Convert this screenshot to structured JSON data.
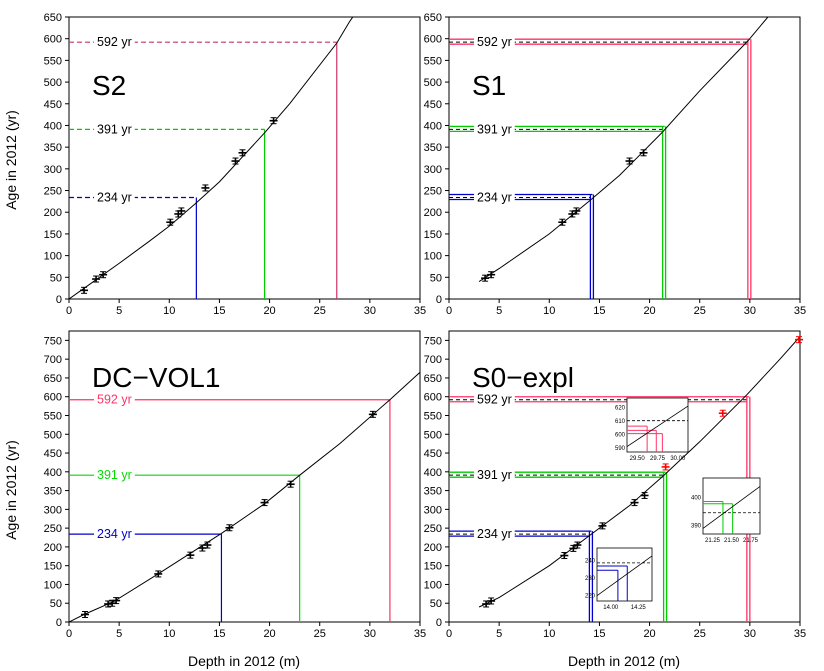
{
  "figure": {
    "shared_ylabel": "Age in 2012 (yr)",
    "shared_xlabel": "Depth in 2012 (m)"
  },
  "chart_data": [
    {
      "type": "line",
      "panel": "S2",
      "label": "S2",
      "xlim": [
        0,
        35
      ],
      "ylim": [
        0,
        650
      ],
      "xticks": [
        0,
        5,
        10,
        15,
        20,
        25,
        30,
        35
      ],
      "yticks": [
        0,
        50,
        100,
        150,
        200,
        250,
        300,
        350,
        400,
        450,
        500,
        550,
        600,
        650
      ],
      "curve": [
        [
          0,
          0
        ],
        [
          2,
          33
        ],
        [
          5,
          82
        ],
        [
          8,
          133
        ],
        [
          10,
          168
        ],
        [
          12.6,
          220
        ],
        [
          15,
          270
        ],
        [
          19.5,
          383
        ],
        [
          22,
          450
        ],
        [
          26.7,
          590
        ],
        [
          28,
          640
        ],
        [
          28.3,
          650
        ]
      ],
      "points": [
        [
          1.5,
          20
        ],
        [
          2.7,
          46
        ],
        [
          3.4,
          56
        ],
        [
          10.1,
          177
        ],
        [
          10.9,
          196
        ],
        [
          11.2,
          203
        ],
        [
          13.6,
          256
        ],
        [
          16.6,
          318
        ],
        [
          17.3,
          337
        ],
        [
          20.4,
          411
        ]
      ],
      "markers": [
        {
          "label": "234 yr",
          "age": 234,
          "depth": 12.7,
          "color": "#0000cc",
          "double": false
        },
        {
          "label": "391 yr",
          "age": 391,
          "depth": 19.5,
          "color": "#00cc00",
          "double": false
        },
        {
          "label": "592 yr",
          "age": 592,
          "depth": 26.7,
          "color": "#cc3366",
          "double": false
        }
      ]
    },
    {
      "type": "line",
      "panel": "S1",
      "label": "S1",
      "xlim": [
        0,
        35
      ],
      "ylim": [
        0,
        650
      ],
      "xticks": [
        0,
        5,
        10,
        15,
        20,
        25,
        30,
        35
      ],
      "yticks": [
        0,
        50,
        100,
        150,
        200,
        250,
        300,
        350,
        400,
        450,
        500,
        550,
        600,
        650
      ],
      "curve": [
        [
          3,
          40
        ],
        [
          5,
          70
        ],
        [
          10,
          150
        ],
        [
          14.1,
          228
        ],
        [
          17,
          285
        ],
        [
          21.3,
          385
        ],
        [
          25,
          480
        ],
        [
          29.8,
          595
        ],
        [
          31.8,
          650
        ]
      ],
      "points": [
        [
          3.6,
          48
        ],
        [
          4.2,
          56
        ],
        [
          11.3,
          177
        ],
        [
          12.3,
          196
        ],
        [
          12.7,
          203
        ],
        [
          18.0,
          318
        ],
        [
          19.4,
          337
        ]
      ],
      "markers": [
        {
          "label": "234 yr",
          "age": 234,
          "depth": 14.1,
          "color": "#0000cc",
          "double": true
        },
        {
          "label": "391 yr",
          "age": 391,
          "depth": 21.3,
          "color": "#00cc00",
          "double": true
        },
        {
          "label": "592 yr",
          "age": 592,
          "depth": 29.8,
          "color": "#ff3366",
          "double": true
        }
      ]
    },
    {
      "type": "line",
      "panel": "DC-VOL1",
      "label": "DC−VOL1",
      "xlim": [
        0,
        35
      ],
      "ylim": [
        0,
        775
      ],
      "xticks": [
        0,
        5,
        10,
        15,
        20,
        25,
        30,
        35
      ],
      "yticks": [
        0,
        50,
        100,
        150,
        200,
        250,
        300,
        350,
        400,
        450,
        500,
        550,
        600,
        650,
        700,
        750
      ],
      "curve": [
        [
          0,
          0
        ],
        [
          1.5,
          20
        ],
        [
          4.5,
          55
        ],
        [
          9,
          130
        ],
        [
          15.2,
          236
        ],
        [
          19.5,
          315
        ],
        [
          23,
          391
        ],
        [
          27,
          475
        ],
        [
          32,
          592
        ],
        [
          35,
          665
        ]
      ],
      "points": [
        [
          1.6,
          20
        ],
        [
          3.9,
          48
        ],
        [
          4.3,
          50
        ],
        [
          4.7,
          57
        ],
        [
          8.9,
          128
        ],
        [
          12.1,
          178
        ],
        [
          13.3,
          197
        ],
        [
          13.8,
          205
        ],
        [
          16.0,
          251
        ],
        [
          19.5,
          318
        ],
        [
          22.1,
          367
        ],
        [
          30.3,
          553
        ]
      ],
      "markers": [
        {
          "label": "234 yr",
          "age": 234,
          "depth": 15.2,
          "color": "#0000cc",
          "double": false
        },
        {
          "label": "391 yr",
          "age": 391,
          "depth": 23.0,
          "color": "#00dd00",
          "double": false
        },
        {
          "label": "592 yr",
          "age": 592,
          "depth": 32.0,
          "color": "#ff3366",
          "double": false
        }
      ]
    },
    {
      "type": "line",
      "panel": "S0-expl",
      "label": "S0−expl",
      "xlim": [
        0,
        35
      ],
      "ylim": [
        0,
        775
      ],
      "xticks": [
        0,
        5,
        10,
        15,
        20,
        25,
        30,
        35
      ],
      "yticks": [
        0,
        50,
        100,
        150,
        200,
        250,
        300,
        350,
        400,
        450,
        500,
        550,
        600,
        650,
        700,
        750
      ],
      "curve": [
        [
          3,
          40
        ],
        [
          5,
          65
        ],
        [
          10,
          150
        ],
        [
          14,
          230
        ],
        [
          18,
          310
        ],
        [
          21.4,
          390
        ],
        [
          25,
          480
        ],
        [
          29.7,
          605
        ],
        [
          33,
          700
        ],
        [
          35,
          760
        ]
      ],
      "points": [
        [
          3.7,
          48
        ],
        [
          4.2,
          56
        ],
        [
          11.5,
          177
        ],
        [
          12.4,
          196
        ],
        [
          12.8,
          205
        ],
        [
          15.3,
          256
        ],
        [
          18.5,
          318
        ],
        [
          19.5,
          337
        ]
      ],
      "red_points": [
        [
          21.6,
          413
        ],
        [
          27.3,
          556
        ],
        [
          34.9,
          752
        ]
      ],
      "markers": [
        {
          "label": "234 yr",
          "age": 234,
          "depth": 14.0,
          "color": "#0000cc",
          "double": true
        },
        {
          "label": "391 yr",
          "age": 391,
          "depth": 21.4,
          "color": "#00cc00",
          "double": true
        },
        {
          "label": "592 yr",
          "age": 592,
          "depth": 29.7,
          "color": "#ff3366",
          "double": true
        }
      ],
      "insets": [
        {
          "xticks": [
            "29.50",
            "29.75",
            "30.00"
          ],
          "yticks": [
            "590",
            "600",
            "610",
            "620"
          ]
        },
        {
          "xticks": [
            "21.25",
            "21.50",
            "21.75"
          ],
          "yticks": [
            "390",
            "400"
          ]
        },
        {
          "xticks": [
            "14.00",
            "14.25"
          ],
          "yticks": [
            "220",
            "230",
            "240"
          ]
        }
      ]
    }
  ]
}
